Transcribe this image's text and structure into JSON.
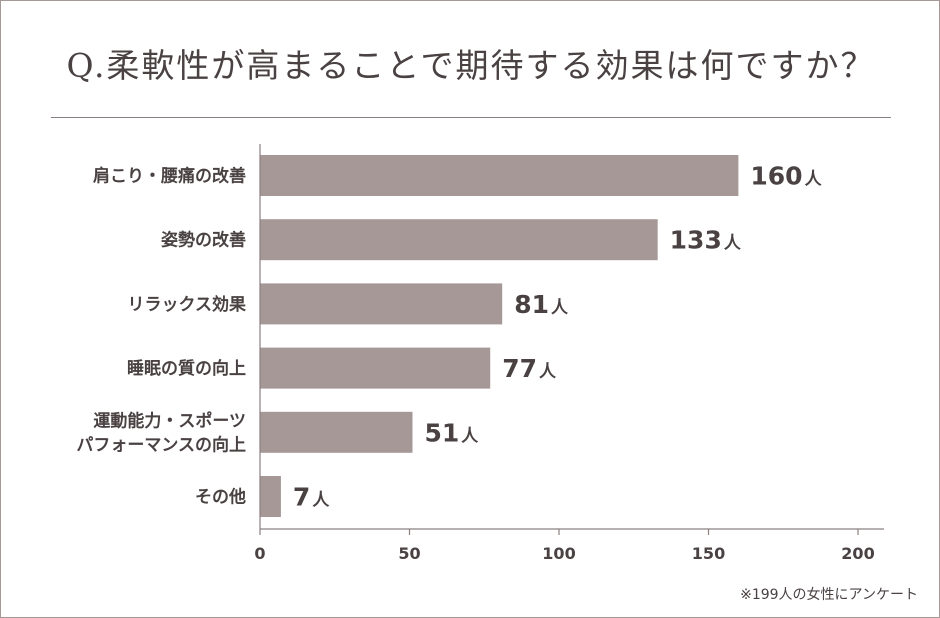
{
  "chart_data": {
    "type": "bar",
    "orientation": "horizontal",
    "title": "Q.柔軟性が高まることで期待する効果は何ですか？",
    "categories": [
      "肩こり・腰痛の改善",
      "姿勢の改善",
      "リラックス効果",
      "睡眠の質の向上",
      "運動能力・スポーツ\nパフォーマンスの向上",
      "その他"
    ],
    "values": [
      160,
      133,
      81,
      77,
      51,
      7
    ],
    "value_unit": "人",
    "xlim": [
      0,
      200
    ],
    "xticks": [
      0,
      50,
      100,
      150,
      200
    ],
    "grid": false,
    "bar_color": "#a59896",
    "note": "※199人の女性にアンケート"
  }
}
